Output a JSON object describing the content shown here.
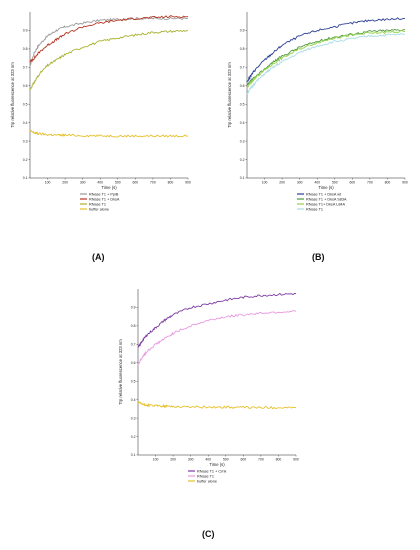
{
  "chart_data": [
    {
      "type": "line",
      "panel_label": "(A)",
      "xlabel": "Time (s)",
      "ylabel": "Trp relative fluorescence at 323 nm",
      "xlim": [
        0,
        900
      ],
      "ylim": [
        0.1,
        1.0
      ],
      "x_ticks": [
        "100",
        "200",
        "300",
        "400",
        "500",
        "600",
        "700",
        "800",
        "900"
      ],
      "y_ticks": [
        "0.1",
        "0.2",
        "0.3",
        "0.4",
        "0.5",
        "0.6",
        "0.7",
        "0.8",
        "0.9"
      ],
      "legend_position": "bottom-right",
      "series": [
        {
          "name": "RNase T1 + PpiB",
          "color": "#9a9a9a",
          "x": [
            0,
            25,
            50,
            100,
            150,
            200,
            300,
            400,
            500,
            600,
            700,
            800,
            900
          ],
          "values": [
            0.71,
            0.78,
            0.82,
            0.87,
            0.9,
            0.92,
            0.94,
            0.955,
            0.96,
            0.965,
            0.965,
            0.965,
            0.965
          ]
        },
        {
          "name": "RNase T1 + DksA",
          "color": "#b5341f",
          "x": [
            0,
            25,
            50,
            100,
            150,
            200,
            300,
            400,
            500,
            600,
            700,
            800,
            900
          ],
          "values": [
            0.73,
            0.75,
            0.78,
            0.82,
            0.85,
            0.88,
            0.92,
            0.94,
            0.955,
            0.965,
            0.97,
            0.975,
            0.975
          ]
        },
        {
          "name": "RNase T1",
          "color": "#a9b02e",
          "x": [
            0,
            25,
            50,
            100,
            150,
            200,
            300,
            400,
            500,
            600,
            700,
            800,
            900
          ],
          "values": [
            0.58,
            0.62,
            0.66,
            0.71,
            0.74,
            0.77,
            0.81,
            0.84,
            0.86,
            0.875,
            0.89,
            0.895,
            0.9
          ]
        },
        {
          "name": "buffer alone",
          "color": "#e6c02b",
          "x": [
            0,
            25,
            50,
            100,
            150,
            200,
            300,
            400,
            500,
            600,
            700,
            800,
            900
          ],
          "values": [
            0.355,
            0.345,
            0.34,
            0.335,
            0.333,
            0.332,
            0.33,
            0.329,
            0.328,
            0.328,
            0.328,
            0.328,
            0.328
          ]
        }
      ]
    },
    {
      "type": "line",
      "panel_label": "(B)",
      "xlabel": "Time (s)",
      "ylabel": "Trp relative fluorescence at 323 nm",
      "xlim": [
        0,
        900
      ],
      "ylim": [
        0.1,
        1.0
      ],
      "x_ticks": [
        "100",
        "200",
        "300",
        "400",
        "500",
        "600",
        "700",
        "800",
        "900"
      ],
      "y_ticks": [
        "0.1",
        "0.2",
        "0.3",
        "0.4",
        "0.5",
        "0.6",
        "0.7",
        "0.8",
        "0.9"
      ],
      "legend_position": "bottom-right",
      "series": [
        {
          "name": "RNase T1 + DksA wt",
          "color": "#2b3e96",
          "x": [
            0,
            25,
            50,
            100,
            150,
            200,
            300,
            400,
            500,
            600,
            700,
            800,
            900
          ],
          "values": [
            0.62,
            0.66,
            0.69,
            0.74,
            0.78,
            0.82,
            0.87,
            0.9,
            0.92,
            0.94,
            0.955,
            0.96,
            0.965
          ]
        },
        {
          "name": "RNase T1 + DksA S83A",
          "color": "#4e9a3c",
          "x": [
            0,
            25,
            50,
            100,
            150,
            200,
            300,
            400,
            500,
            600,
            700,
            800,
            900
          ],
          "values": [
            0.6,
            0.63,
            0.65,
            0.69,
            0.73,
            0.76,
            0.81,
            0.84,
            0.865,
            0.88,
            0.895,
            0.9,
            0.905
          ]
        },
        {
          "name": "RNase T1+ DksA L84A",
          "color": "#96d04a",
          "x": [
            0,
            25,
            50,
            100,
            150,
            200,
            300,
            400,
            500,
            600,
            700,
            800,
            900
          ],
          "values": [
            0.59,
            0.62,
            0.645,
            0.685,
            0.72,
            0.75,
            0.8,
            0.835,
            0.86,
            0.875,
            0.885,
            0.89,
            0.895
          ]
        },
        {
          "name": "RNase T1",
          "color": "#a8dce6",
          "x": [
            0,
            25,
            50,
            100,
            150,
            200,
            300,
            400,
            500,
            600,
            700,
            800,
            900
          ],
          "values": [
            0.56,
            0.59,
            0.62,
            0.665,
            0.7,
            0.73,
            0.78,
            0.815,
            0.84,
            0.855,
            0.87,
            0.875,
            0.88
          ]
        }
      ]
    },
    {
      "type": "line",
      "panel_label": "(C)",
      "xlabel": "Time (s)",
      "ylabel": "Trp relative fluorescence at 323 nm",
      "xlim": [
        0,
        900
      ],
      "ylim": [
        0.1,
        1.0
      ],
      "x_ticks": [
        "100",
        "200",
        "300",
        "400",
        "500",
        "600",
        "700",
        "800",
        "900"
      ],
      "y_ticks": [
        "0.1",
        "0.2",
        "0.3",
        "0.4",
        "0.5",
        "0.6",
        "0.7",
        "0.8",
        "0.9"
      ],
      "legend_position": "bottom-right",
      "series": [
        {
          "name": "RNase T1 + Crnk",
          "color": "#7b3ba0",
          "x": [
            0,
            25,
            50,
            100,
            150,
            200,
            300,
            400,
            500,
            600,
            700,
            800,
            900
          ],
          "values": [
            0.68,
            0.72,
            0.75,
            0.79,
            0.83,
            0.86,
            0.9,
            0.92,
            0.94,
            0.955,
            0.965,
            0.97,
            0.975
          ]
        },
        {
          "name": "RNase T1",
          "color": "#e79be0",
          "x": [
            0,
            25,
            50,
            100,
            150,
            200,
            300,
            400,
            500,
            600,
            700,
            800,
            900
          ],
          "values": [
            0.59,
            0.63,
            0.66,
            0.7,
            0.73,
            0.76,
            0.8,
            0.83,
            0.85,
            0.86,
            0.87,
            0.875,
            0.88
          ]
        },
        {
          "name": "buffer alone",
          "color": "#e6c02b",
          "x": [
            0,
            25,
            50,
            100,
            150,
            200,
            300,
            400,
            500,
            600,
            700,
            800,
            900
          ],
          "values": [
            0.385,
            0.375,
            0.37,
            0.367,
            0.365,
            0.363,
            0.361,
            0.36,
            0.359,
            0.358,
            0.357,
            0.357,
            0.357
          ]
        }
      ]
    }
  ]
}
